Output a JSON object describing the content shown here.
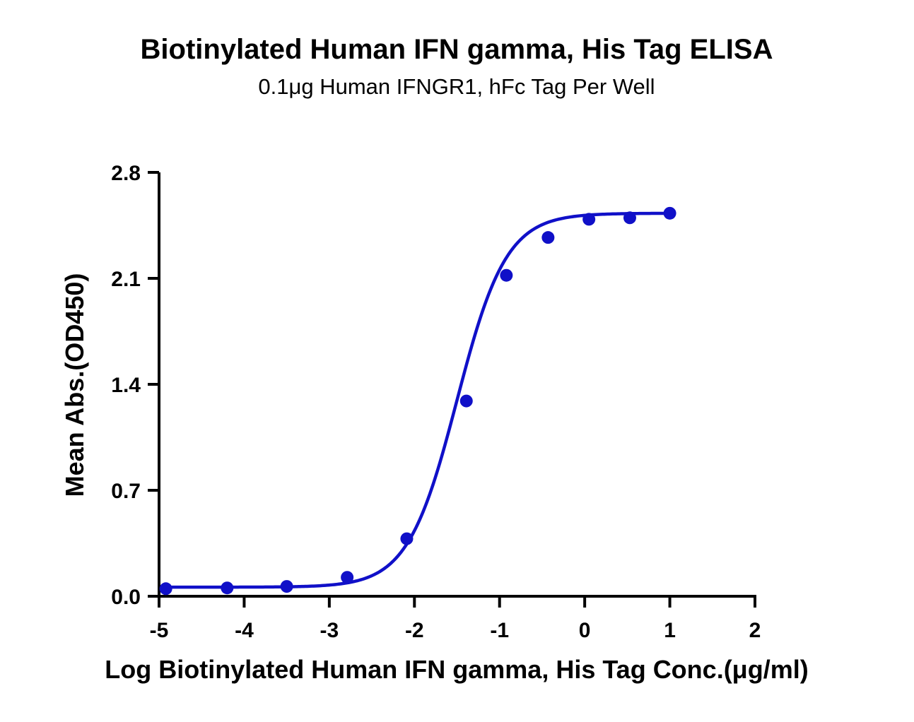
{
  "chart_data": {
    "type": "scatter",
    "title": "Biotinylated Human IFN gamma, His Tag ELISA",
    "subtitle": "0.1μg Human IFNGR1, hFc Tag Per Well",
    "xlabel": "Log Biotinylated Human IFN gamma, His Tag Conc.(μg/ml)",
    "ylabel": "Mean Abs.(OD450)",
    "xlim": [
      -5,
      2
    ],
    "ylim": [
      0,
      2.8
    ],
    "xticks": [
      -5,
      -4,
      -3,
      -2,
      -1,
      0,
      1,
      2
    ],
    "xtick_labels": [
      "-5",
      "-4",
      "-3",
      "-2",
      "-1",
      "0",
      "1",
      "2"
    ],
    "yticks": [
      0,
      0.7,
      1.4,
      2.1,
      2.8
    ],
    "ytick_labels": [
      "0.0",
      "0.7",
      "1.4",
      "2.1",
      "2.8"
    ],
    "color": "#1010c8",
    "grid": false,
    "series": [
      {
        "x": [
          -4.92,
          -4.2,
          -3.5,
          -2.79,
          -2.09,
          -1.39,
          -0.92,
          -0.43,
          0.05,
          0.53,
          1.0
        ],
        "y": [
          0.05,
          0.055,
          0.065,
          0.125,
          0.38,
          1.29,
          2.12,
          2.37,
          2.49,
          2.5,
          2.53
        ]
      }
    ],
    "fit_curve": {
      "model": "4PL",
      "bottom": 0.06,
      "top": 2.53,
      "log_ec50": -1.5,
      "hill_slope": 1.5
    }
  }
}
